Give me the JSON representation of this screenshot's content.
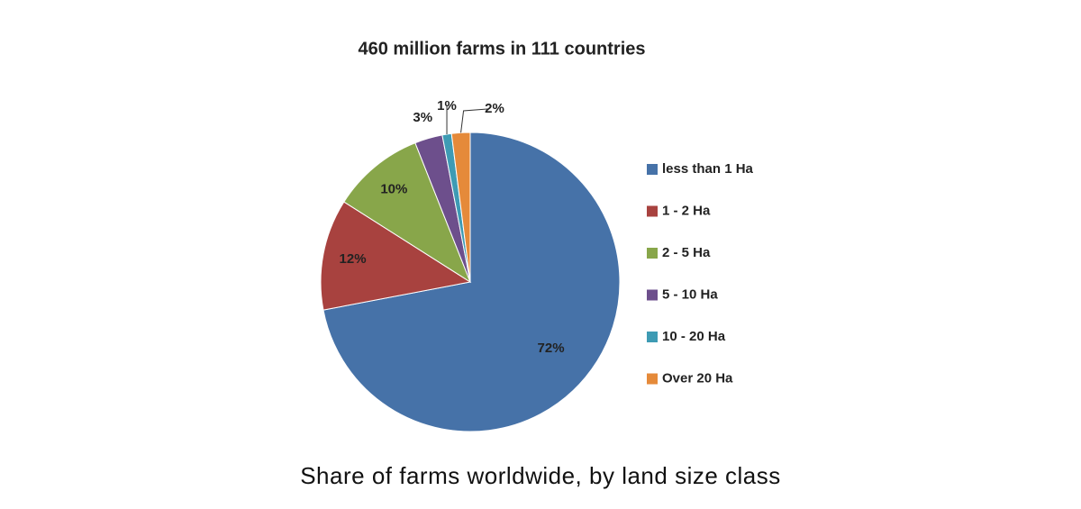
{
  "chart_data": {
    "type": "pie",
    "title": "460 million farms in 111 countries",
    "caption": "Share of farms worldwide, by land size class",
    "categories": [
      "less than 1 Ha",
      "1 - 2 Ha",
      "2 - 5 Ha",
      "5 - 10 Ha",
      "10 - 20 Ha",
      "Over 20 Ha"
    ],
    "values": [
      72,
      12,
      10,
      3,
      1,
      2
    ],
    "value_labels": [
      "72%",
      "12%",
      "10%",
      "3%",
      "1%",
      "2%"
    ],
    "colors": [
      "#4672a8",
      "#a8423f",
      "#88a64a",
      "#6d4f8c",
      "#3e9bb4",
      "#e58a3a"
    ],
    "legend": "right"
  }
}
